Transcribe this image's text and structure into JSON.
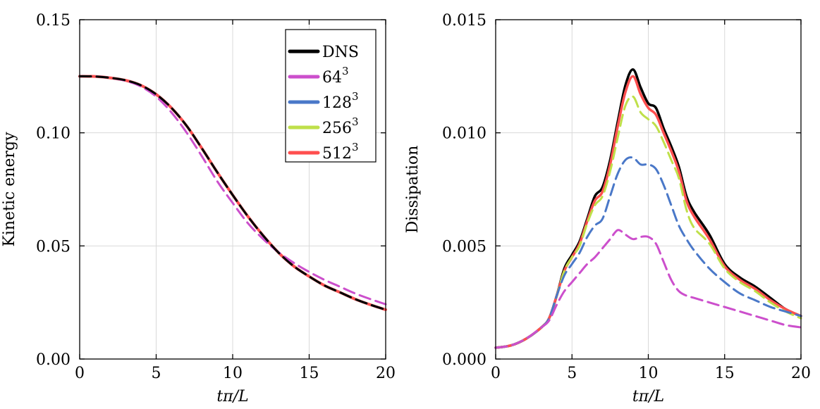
{
  "chart_data": [
    {
      "type": "line",
      "xlabel": "tπ/L",
      "ylabel": "Kinetic energy",
      "xlim": [
        0,
        20
      ],
      "ylim": [
        0,
        0.15
      ],
      "xticks": [
        0,
        5,
        10,
        15,
        20
      ],
      "xtick_labels": [
        "0",
        "5",
        "10",
        "15",
        "20"
      ],
      "yticks": [
        0,
        0.05,
        0.1,
        0.15
      ],
      "ytick_labels": [
        "0.00",
        "0.05",
        "0.10",
        "0.15"
      ],
      "grid": true,
      "legend": {
        "placement": "top-right",
        "entries": [
          {
            "label": "DNS",
            "exp": "",
            "color": "#000000"
          },
          {
            "label": "64",
            "exp": "3",
            "color": "#cc4fcc"
          },
          {
            "label": "128",
            "exp": "3",
            "color": "#4a78c8"
          },
          {
            "label": "256",
            "exp": "3",
            "color": "#bfe04a"
          },
          {
            "label": "512",
            "exp": "3",
            "color": "#ff4f4f"
          }
        ]
      },
      "series": [
        {
          "name": "512³",
          "color": "#ff4f4f",
          "style": "solid",
          "width": 4,
          "x": [
            0,
            1,
            2,
            3,
            4,
            5,
            6,
            7,
            8,
            9,
            10,
            11,
            12,
            13,
            14,
            15,
            16,
            17,
            18,
            19,
            20
          ],
          "y": [
            0.125,
            0.1249,
            0.1243,
            0.1232,
            0.121,
            0.117,
            0.111,
            0.103,
            0.093,
            0.0825,
            0.0725,
            0.063,
            0.0545,
            0.047,
            0.041,
            0.0365,
            0.0325,
            0.0295,
            0.0265,
            0.024,
            0.0218
          ]
        },
        {
          "name": "256³",
          "color": "#bfe04a",
          "style": "dashed",
          "width": 3,
          "x": [
            0,
            1,
            2,
            3,
            4,
            5,
            6,
            7,
            8,
            9,
            10,
            11,
            12,
            13,
            14,
            15,
            16,
            17,
            18,
            19,
            20
          ],
          "y": [
            0.125,
            0.1249,
            0.1243,
            0.1232,
            0.121,
            0.117,
            0.111,
            0.103,
            0.093,
            0.0825,
            0.0725,
            0.063,
            0.0545,
            0.047,
            0.041,
            0.0365,
            0.0325,
            0.0295,
            0.0265,
            0.024,
            0.0218
          ]
        },
        {
          "name": "128³",
          "color": "#4a78c8",
          "style": "dashed",
          "width": 3,
          "x": [
            0,
            1,
            2,
            3,
            4,
            5,
            6,
            7,
            8,
            9,
            10,
            11,
            12,
            13,
            14,
            15,
            16,
            17,
            18,
            19,
            20
          ],
          "y": [
            0.125,
            0.1249,
            0.1243,
            0.1232,
            0.121,
            0.117,
            0.111,
            0.103,
            0.093,
            0.0825,
            0.0725,
            0.063,
            0.0545,
            0.047,
            0.041,
            0.0365,
            0.0325,
            0.0295,
            0.0265,
            0.024,
            0.0218
          ]
        },
        {
          "name": "64³",
          "color": "#cc4fcc",
          "style": "dashed",
          "width": 3,
          "x": [
            0,
            1,
            2,
            3,
            4,
            5,
            6,
            7,
            8,
            9,
            10,
            11,
            12,
            13,
            14,
            15,
            16,
            17,
            18,
            19,
            20
          ],
          "y": [
            0.125,
            0.1249,
            0.1243,
            0.123,
            0.1205,
            0.116,
            0.109,
            0.1,
            0.0895,
            0.0785,
            0.069,
            0.06,
            0.053,
            0.0472,
            0.0425,
            0.0385,
            0.035,
            0.032,
            0.029,
            0.0265,
            0.0242
          ]
        },
        {
          "name": "DNS",
          "color": "#000000",
          "style": "dashed-thick",
          "width": 3,
          "x": [
            0,
            1,
            2,
            3,
            4,
            5,
            6,
            7,
            8,
            9,
            10,
            11,
            12,
            13,
            14,
            15,
            16,
            17,
            18,
            19,
            20
          ],
          "y": [
            0.125,
            0.1249,
            0.1243,
            0.1232,
            0.121,
            0.117,
            0.111,
            0.103,
            0.093,
            0.0825,
            0.0725,
            0.063,
            0.0545,
            0.047,
            0.041,
            0.0365,
            0.0325,
            0.0295,
            0.0265,
            0.024,
            0.0218
          ]
        }
      ]
    },
    {
      "type": "line",
      "xlabel": "tπ/L",
      "ylabel": "Dissipation",
      "xlim": [
        0,
        20
      ],
      "ylim": [
        0,
        0.015
      ],
      "xticks": [
        0,
        5,
        10,
        15,
        20
      ],
      "xtick_labels": [
        "0",
        "5",
        "10",
        "15",
        "20"
      ],
      "yticks": [
        0,
        0.005,
        0.01,
        0.015
      ],
      "ytick_labels": [
        "0.000",
        "0.005",
        "0.010",
        "0.015"
      ],
      "grid": true,
      "series": [
        {
          "name": "DNS",
          "color": "#000000",
          "style": "solid",
          "width": 3.5,
          "x": [
            0,
            1,
            2,
            3,
            3.5,
            4,
            4.5,
            5,
            5.5,
            6,
            6.5,
            7,
            7.5,
            8,
            8.5,
            9,
            9.5,
            10,
            10.5,
            11,
            11.5,
            12,
            12.5,
            13,
            14,
            15,
            16,
            17,
            18,
            19,
            20
          ],
          "y": [
            0.0005,
            0.0006,
            0.0009,
            0.0014,
            0.0018,
            0.0028,
            0.004,
            0.0046,
            0.0052,
            0.0062,
            0.0072,
            0.0076,
            0.0088,
            0.0105,
            0.0121,
            0.0128,
            0.012,
            0.0113,
            0.0111,
            0.0102,
            0.0094,
            0.0085,
            0.0072,
            0.0065,
            0.0055,
            0.0042,
            0.0036,
            0.0032,
            0.0027,
            0.0022,
            0.0019
          ]
        },
        {
          "name": "512³",
          "color": "#ff4f4f",
          "style": "solid",
          "width": 3.5,
          "x": [
            0,
            1,
            2,
            3,
            3.5,
            4,
            4.5,
            5,
            5.5,
            6,
            6.5,
            7,
            7.5,
            8,
            8.5,
            9,
            9.5,
            10,
            10.5,
            11,
            11.5,
            12,
            12.5,
            13,
            14,
            15,
            16,
            17,
            18,
            19,
            20
          ],
          "y": [
            0.0005,
            0.0006,
            0.0009,
            0.0014,
            0.0018,
            0.0028,
            0.0039,
            0.0045,
            0.0051,
            0.0061,
            0.007,
            0.0074,
            0.0086,
            0.0103,
            0.0118,
            0.0125,
            0.0117,
            0.0111,
            0.0108,
            0.01,
            0.0092,
            0.0083,
            0.007,
            0.0063,
            0.0053,
            0.0041,
            0.0035,
            0.0031,
            0.0026,
            0.0022,
            0.0019
          ]
        },
        {
          "name": "256³",
          "color": "#bfe04a",
          "style": "dashed",
          "width": 3,
          "x": [
            0,
            1,
            2,
            3,
            3.5,
            4,
            4.5,
            5,
            5.5,
            6,
            6.5,
            7,
            7.5,
            8,
            8.5,
            9,
            9.5,
            10,
            10.5,
            11,
            11.5,
            12,
            12.5,
            13,
            14,
            15,
            16,
            17,
            18,
            19,
            20
          ],
          "y": [
            0.0005,
            0.0006,
            0.0009,
            0.0014,
            0.0018,
            0.0028,
            0.0039,
            0.0045,
            0.005,
            0.006,
            0.0068,
            0.0072,
            0.0083,
            0.0098,
            0.0112,
            0.0116,
            0.0109,
            0.0106,
            0.0103,
            0.0096,
            0.0088,
            0.008,
            0.0066,
            0.0058,
            0.0051,
            0.004,
            0.0034,
            0.003,
            0.0025,
            0.0021,
            0.0018
          ]
        },
        {
          "name": "128³",
          "color": "#4a78c8",
          "style": "dashed",
          "width": 3,
          "x": [
            0,
            1,
            2,
            3,
            3.5,
            4,
            4.5,
            5,
            5.5,
            6,
            6.5,
            7,
            7.5,
            8,
            8.5,
            9,
            9.5,
            10,
            10.5,
            11,
            11.5,
            12,
            12.5,
            13,
            14,
            15,
            16,
            17,
            18,
            19,
            20
          ],
          "y": [
            0.0005,
            0.0006,
            0.0009,
            0.0014,
            0.0018,
            0.0028,
            0.0037,
            0.0042,
            0.0047,
            0.0054,
            0.0059,
            0.0062,
            0.0072,
            0.0082,
            0.0088,
            0.0089,
            0.0086,
            0.0086,
            0.0084,
            0.0077,
            0.0068,
            0.0059,
            0.0053,
            0.0048,
            0.004,
            0.0034,
            0.0029,
            0.0026,
            0.0023,
            0.0021,
            0.0019
          ]
        },
        {
          "name": "64³",
          "color": "#cc4fcc",
          "style": "dashed",
          "width": 3,
          "x": [
            0,
            1,
            2,
            3,
            3.5,
            4,
            4.5,
            5,
            5.5,
            6,
            6.5,
            7,
            7.5,
            8,
            8.5,
            9,
            9.5,
            10,
            10.5,
            11,
            11.5,
            12,
            12.5,
            13,
            14,
            15,
            16,
            17,
            18,
            19,
            20
          ],
          "y": [
            0.0005,
            0.0006,
            0.0009,
            0.0014,
            0.0017,
            0.0024,
            0.003,
            0.0034,
            0.0038,
            0.0042,
            0.0045,
            0.0049,
            0.0053,
            0.0057,
            0.0055,
            0.0053,
            0.0054,
            0.0054,
            0.0051,
            0.0043,
            0.0035,
            0.003,
            0.0028,
            0.0027,
            0.0025,
            0.0023,
            0.0021,
            0.0019,
            0.0017,
            0.0015,
            0.0014
          ]
        }
      ]
    }
  ]
}
